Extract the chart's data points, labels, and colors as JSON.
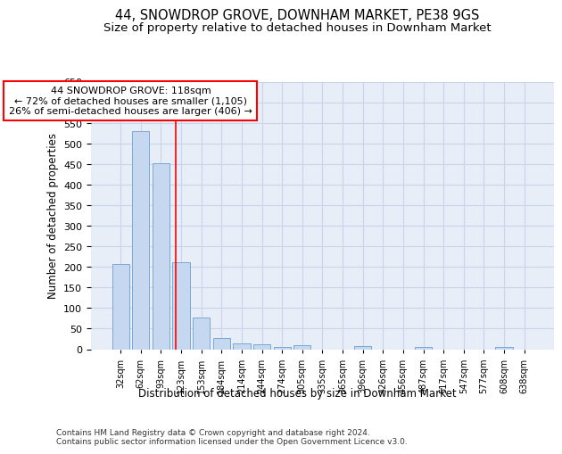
{
  "title_line1": "44, SNOWDROP GROVE, DOWNHAM MARKET, PE38 9GS",
  "title_line2": "Size of property relative to detached houses in Downham Market",
  "xlabel": "Distribution of detached houses by size in Downham Market",
  "ylabel": "Number of detached properties",
  "footnote": "Contains HM Land Registry data © Crown copyright and database right 2024.\nContains public sector information licensed under the Open Government Licence v3.0.",
  "bar_labels": [
    "32sqm",
    "62sqm",
    "93sqm",
    "123sqm",
    "153sqm",
    "184sqm",
    "214sqm",
    "244sqm",
    "274sqm",
    "305sqm",
    "335sqm",
    "365sqm",
    "396sqm",
    "426sqm",
    "456sqm",
    "487sqm",
    "517sqm",
    "547sqm",
    "577sqm",
    "608sqm",
    "638sqm"
  ],
  "bar_values": [
    207,
    530,
    451,
    211,
    78,
    27,
    15,
    12,
    5,
    9,
    0,
    0,
    7,
    0,
    0,
    6,
    0,
    0,
    0,
    6,
    0
  ],
  "bar_color": "#c5d8f0",
  "bar_edge_color": "#7aa8d4",
  "annotation_text": "44 SNOWDROP GROVE: 118sqm\n← 72% of detached houses are smaller (1,105)\n26% of semi-detached houses are larger (406) →",
  "annotation_box_color": "white",
  "annotation_box_edge": "red",
  "vline_color": "red",
  "vline_x": 2.75,
  "ylim": [
    0,
    650
  ],
  "yticks": [
    0,
    50,
    100,
    150,
    200,
    250,
    300,
    350,
    400,
    450,
    500,
    550,
    600,
    650
  ],
  "grid_color": "#c8d4e8",
  "bg_color": "#e8eef8",
  "title_fontsize": 10.5,
  "subtitle_fontsize": 9.5,
  "footnote_fontsize": 6.5
}
